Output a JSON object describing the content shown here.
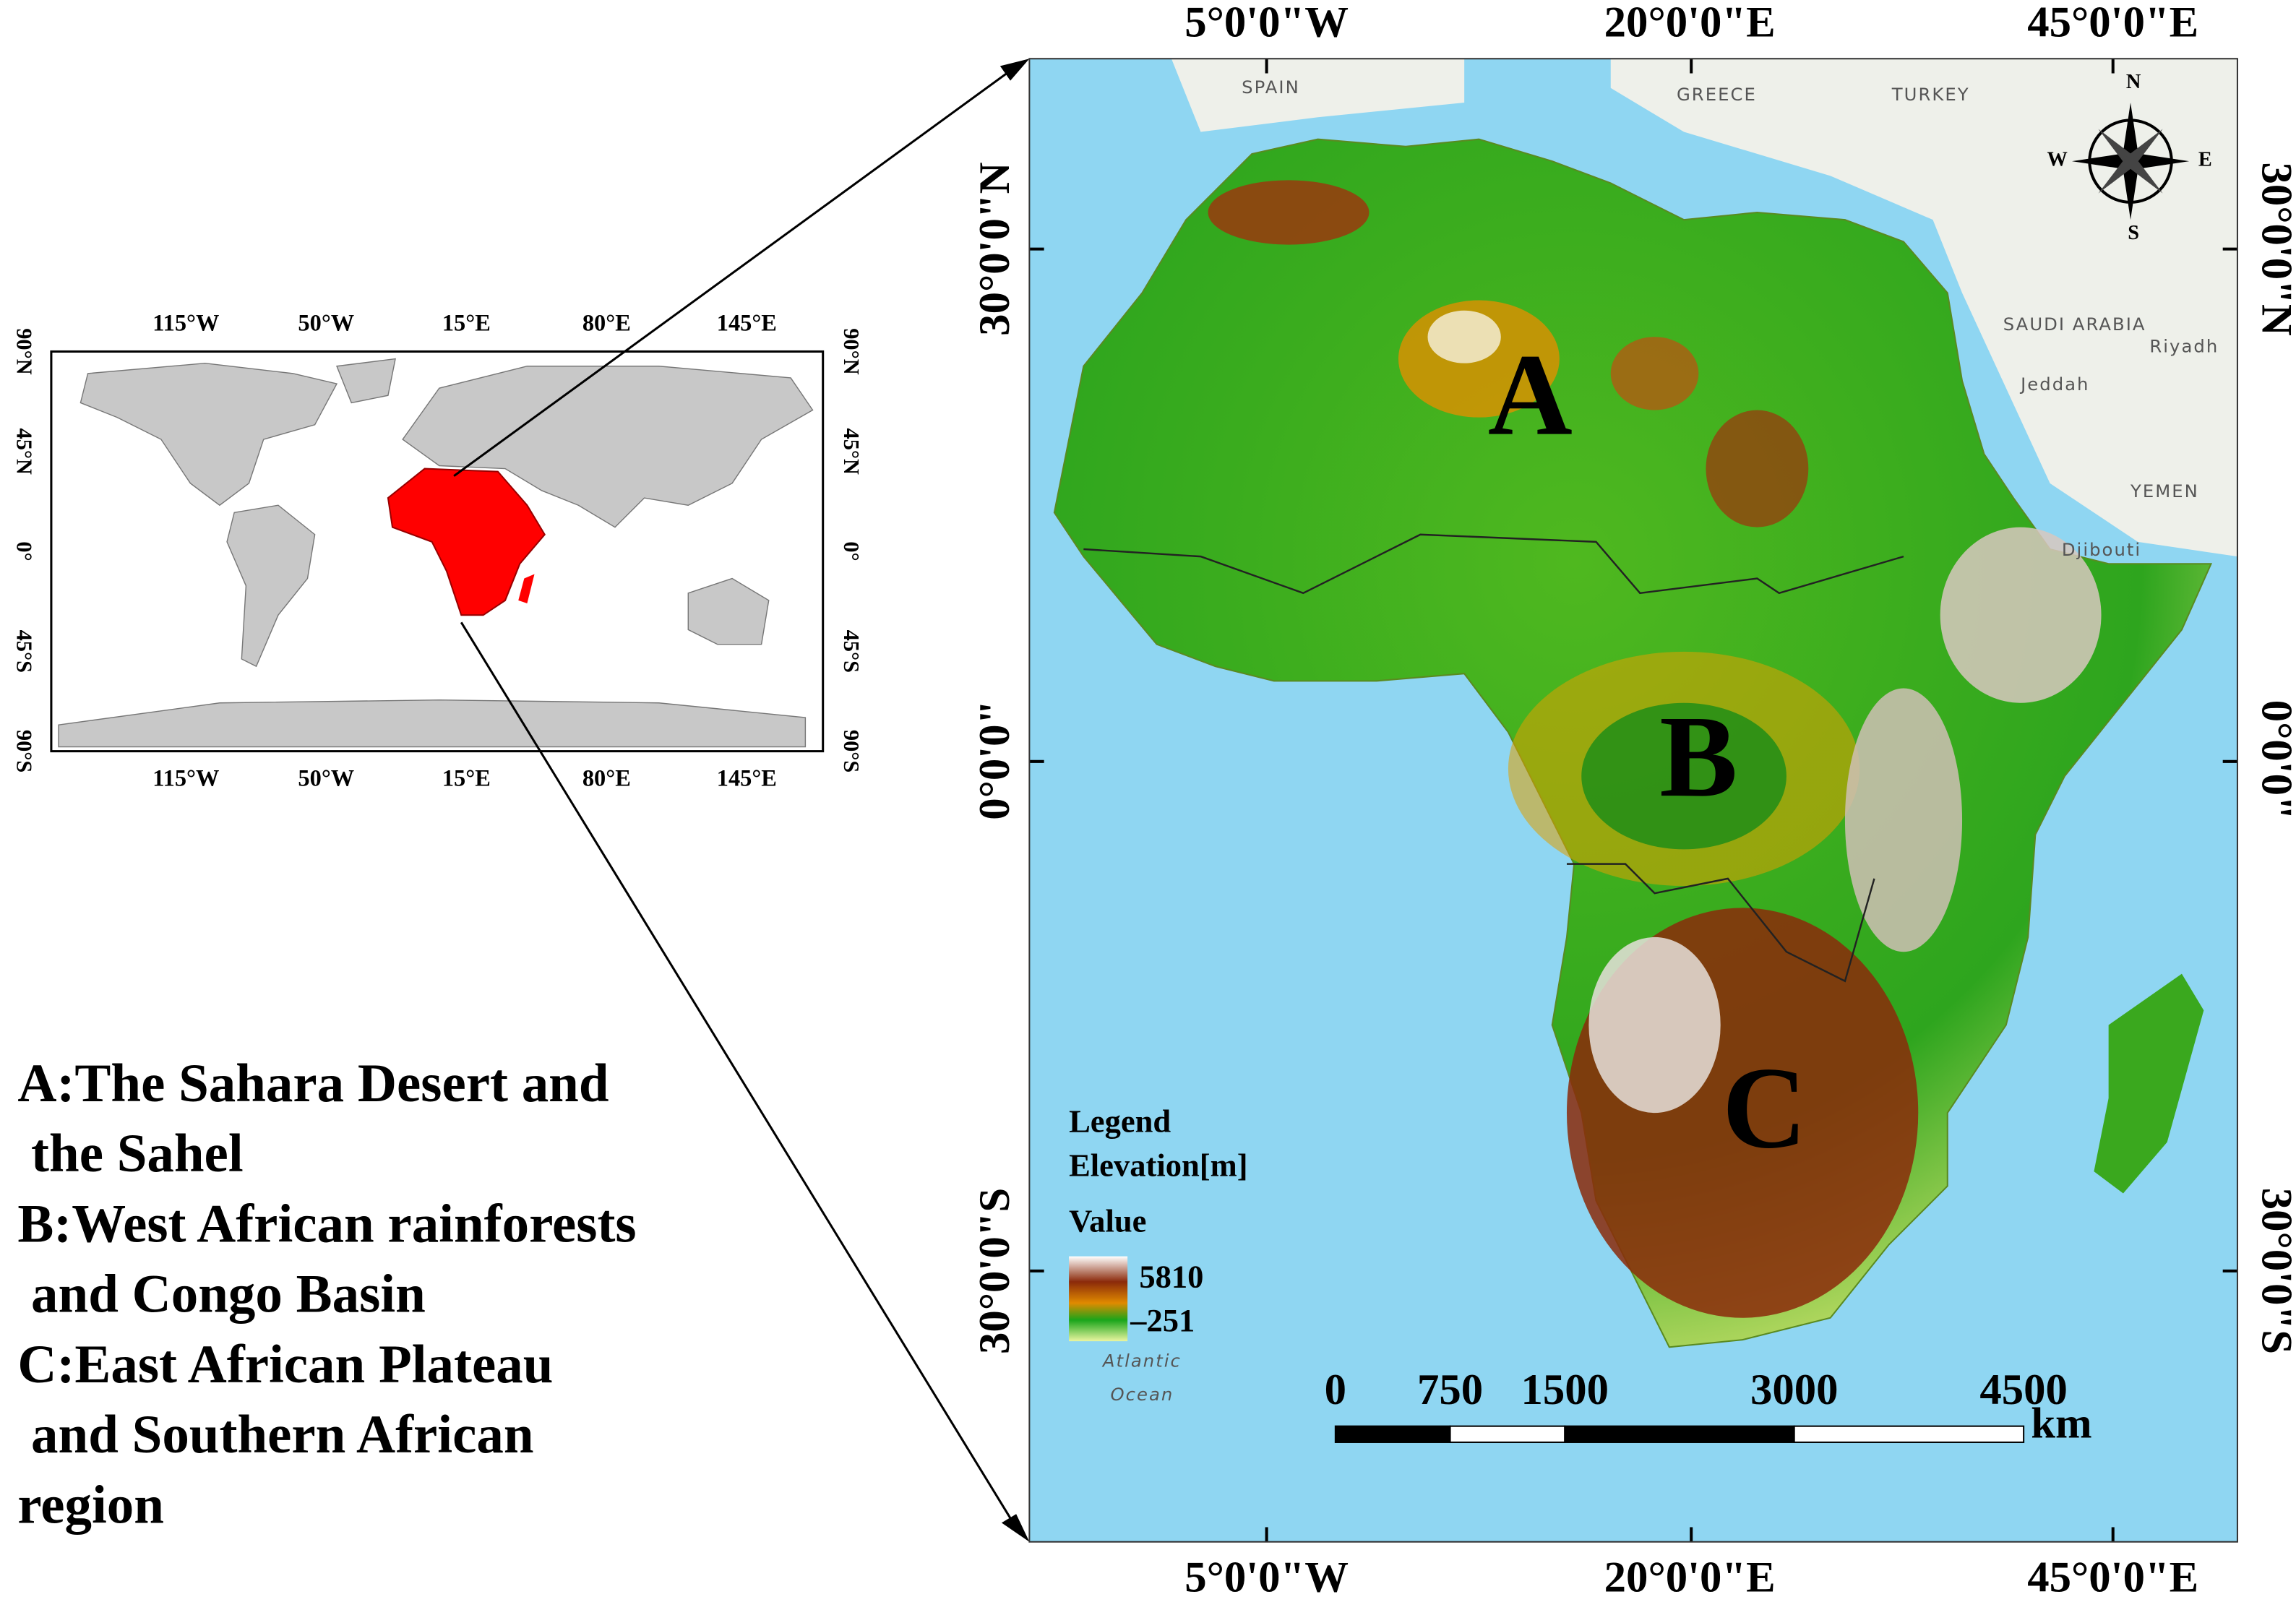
{
  "inset_map": {
    "top_labels": [
      "115°W",
      "50°W",
      "15°E",
      "80°E",
      "145°E"
    ],
    "bottom_labels": [
      "115°W",
      "50°W",
      "15°E",
      "80°E",
      "145°E"
    ],
    "left_labels": [
      "90°N",
      "45°N",
      "0°",
      "45°S",
      "90°S"
    ],
    "right_labels": [
      "90°N",
      "45°N",
      "0°",
      "45°S",
      "90°S"
    ]
  },
  "main_map": {
    "top_labels": [
      "5°0'0\"W",
      "20°0'0\"E",
      "45°0'0\"E"
    ],
    "bottom_labels": [
      "5°0'0\"W",
      "20°0'0\"E",
      "45°0'0\"E"
    ],
    "left_labels": [
      "30°0'0\"N",
      "0°0'0\"",
      "30°0'0\"S"
    ],
    "right_labels": [
      "30°0'0\"N",
      "0°0'0\"",
      "30°0'0\"S"
    ],
    "places": [
      "SPAIN",
      "GREECE",
      "TURKEY",
      "SAUDI ARABIA",
      "Riyadh",
      "Jeddah",
      "YEMEN",
      "Djibouti"
    ],
    "ocean": [
      "Atlantic",
      "Ocean"
    ],
    "regions": [
      "A",
      "B",
      "C"
    ],
    "compass": [
      "N",
      "E",
      "S",
      "W"
    ]
  },
  "legend": {
    "title": "Legend",
    "subtitle": "Elevation[m]",
    "value_label": "Value",
    "max": "5810",
    "min": "–251"
  },
  "scale_bar": {
    "ticks": [
      0,
      750,
      1500,
      3000,
      4500
    ],
    "unit": "km"
  },
  "description": [
    "A:The Sahara Desert and",
    " the Sahel",
    "B:West African rainforests",
    " and Congo Basin",
    "C:East African Plateau",
    " and Southern African",
    "region"
  ]
}
